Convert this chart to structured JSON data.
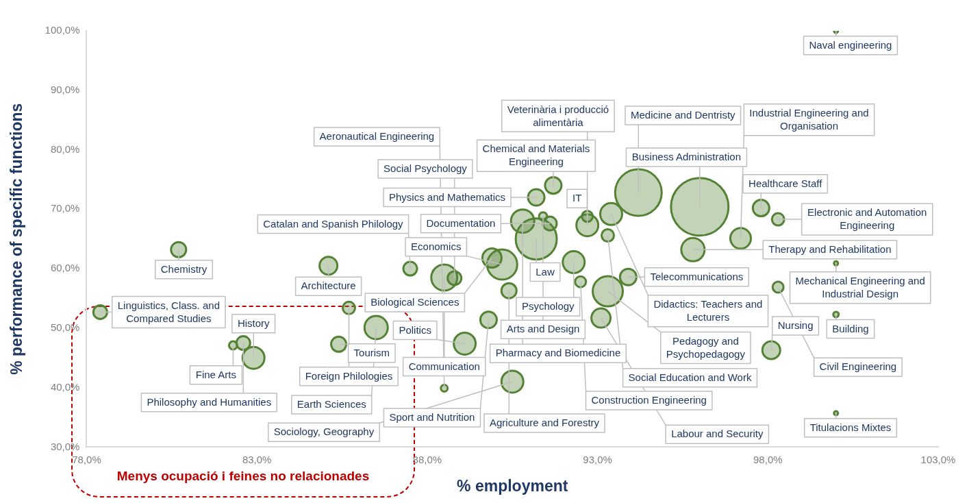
{
  "chart_data": {
    "type": "bubble",
    "xlabel": "% employment",
    "ylabel": "% performance of specific functions",
    "xlim": [
      78,
      103
    ],
    "ylim": [
      30,
      100
    ],
    "xticks": [
      {
        "value": 78,
        "label": "78,0%"
      },
      {
        "value": 83,
        "label": "83,0%"
      },
      {
        "value": 88,
        "label": "88,0%"
      },
      {
        "value": 93,
        "label": "93,0%"
      },
      {
        "value": 98,
        "label": "98,0%"
      },
      {
        "value": 103,
        "label": "103,0%"
      }
    ],
    "yticks": [
      {
        "value": 30,
        "label": "30,0%"
      },
      {
        "value": 40,
        "label": "40,0%"
      },
      {
        "value": 50,
        "label": "50,0%"
      },
      {
        "value": 60,
        "label": "60,0%"
      },
      {
        "value": 70,
        "label": "70,0%"
      },
      {
        "value": 80,
        "label": "80,0%"
      },
      {
        "value": 90,
        "label": "90,0%"
      },
      {
        "value": 100,
        "label": "100,0%"
      }
    ],
    "grid": false,
    "legend": false,
    "series": [
      {
        "color": "#548235",
        "x": [
          100.0,
          91.7,
          92.7,
          91.2,
          96.0,
          93.4,
          92.7,
          91.4,
          91.6,
          90.8,
          94.2,
          93.3,
          97.8,
          98.3,
          89.9,
          87.5,
          90.2,
          97.2,
          91.2,
          80.7,
          95.8,
          85.1,
          78.4,
          88.8,
          88.5,
          92.3,
          100.0,
          85.7,
          93.9,
          100.0,
          92.5,
          90.4,
          93.3,
          98.3,
          93.1,
          89.8,
          86.5,
          85.4,
          82.3,
          82.6,
          89.1,
          98.1,
          82.9,
          90.5,
          88.5,
          100.0
        ],
        "values": [
          100.0,
          74.0,
          67.3,
          72.0,
          70.4,
          69.2,
          68.8,
          68.8,
          67.6,
          68.0,
          72.8,
          65.6,
          70.2,
          68.3,
          61.8,
          60.0,
          60.7,
          65.1,
          65.0,
          63.2,
          63.2,
          60.5,
          52.7,
          58.4,
          58.5,
          61.1,
          60.9,
          53.4,
          58.6,
          52.3,
          57.8,
          56.3,
          56.2,
          56.9,
          51.7,
          51.4,
          50.1,
          47.3,
          47.1,
          47.5,
          47.4,
          46.3,
          45.0,
          41.0,
          39.9,
          35.7
        ],
        "sizes": [
          0.005,
          0.082,
          0.145,
          0.082,
          1,
          0.145,
          0.036,
          0.02,
          0.057,
          0.164,
          0.655,
          0.046,
          0.082,
          0.046,
          0.111,
          0.057,
          0.274,
          0.128,
          0.51,
          0.069,
          0.164,
          0.096,
          0.057,
          0.057,
          0.205,
          0.145,
          0.005,
          0.046,
          0.082,
          0.009,
          0.036,
          0.069,
          0.274,
          0.036,
          0.111,
          0.082,
          0.164,
          0.069,
          0.02,
          0.057,
          0.145,
          0.096,
          0.145,
          0.145,
          0.014,
          0.005
        ]
      }
    ],
    "annotations": [
      {
        "text": "Naval engineering",
        "x": 100.0,
        "y": 100.0
      },
      {
        "text": "Chemical and Materials Engineering",
        "x": 91.7,
        "y": 74.0
      },
      {
        "text": "Veterinària i producció alimentària",
        "x": 92.7,
        "y": 67.3
      },
      {
        "text": "Physics and Mathematics",
        "x": 91.2,
        "y": 72.0
      },
      {
        "text": "Business Administration",
        "x": 96.0,
        "y": 70.4
      },
      {
        "text": "Didactics: Teachers and Lecturers",
        "x": 93.4,
        "y": 69.2
      },
      {
        "text": "IT",
        "x": 92.7,
        "y": 68.8
      },
      {
        "text": "Arts and Design",
        "x": 91.4,
        "y": 68.8
      },
      {
        "text": "Documentation",
        "x": 91.6,
        "y": 67.6
      },
      {
        "text": "Pharmacy and Biomedicine",
        "x": 90.8,
        "y": 68.0
      },
      {
        "text": "Medicine and Dentristy",
        "x": 94.2,
        "y": 72.8
      },
      {
        "text": "Social Education and Work",
        "x": 93.3,
        "y": 65.6
      },
      {
        "text": "Healthcare Staff",
        "x": 97.8,
        "y": 70.2
      },
      {
        "text": "Electronic and Automation Engineering",
        "x": 98.3,
        "y": 68.3
      },
      {
        "text": "Biological Sciences",
        "x": 89.9,
        "y": 61.8
      },
      {
        "text": "Catalan and Spanish Philology",
        "x": 87.5,
        "y": 60.0
      },
      {
        "text": "Economics",
        "x": 90.2,
        "y": 60.7
      },
      {
        "text": "Industrial Engineering and Organisation",
        "x": 97.2,
        "y": 65.1
      },
      {
        "text": "Law",
        "x": 91.2,
        "y": 65.0
      },
      {
        "text": "Chemistry",
        "x": 80.7,
        "y": 63.2
      },
      {
        "text": "Therapy and Rehabilitation",
        "x": 95.8,
        "y": 63.2
      },
      {
        "text": "Architecture",
        "x": 85.1,
        "y": 60.5
      },
      {
        "text": "Linguistics, Class. and Compared Studies",
        "x": 78.4,
        "y": 52.7
      },
      {
        "text": "Social Psychology",
        "x": 88.8,
        "y": 58.4
      },
      {
        "text": "Communication",
        "x": 88.5,
        "y": 58.5
      },
      {
        "text": "Psychology",
        "x": 92.3,
        "y": 61.1
      },
      {
        "text": "Mechanical Engineering and Industrial Design",
        "x": 100.0,
        "y": 60.9
      },
      {
        "text": "Foreign Philologies",
        "x": 85.7,
        "y": 53.4
      },
      {
        "text": "Telecommunications",
        "x": 93.9,
        "y": 58.6
      },
      {
        "text": "Building",
        "x": 100.0,
        "y": 52.3
      },
      {
        "text": "Construction Engineering",
        "x": 92.5,
        "y": 57.8
      },
      {
        "text": "Agriculture and Forestry",
        "x": 90.4,
        "y": 56.3
      },
      {
        "text": "Pedagogy and Psychopedagogy",
        "x": 93.3,
        "y": 56.2
      },
      {
        "text": "Civil Engineering",
        "x": 98.3,
        "y": 56.9
      },
      {
        "text": "Labour and Security",
        "x": 93.1,
        "y": 51.7
      },
      {
        "text": "Sport and Nutrition",
        "x": 89.8,
        "y": 51.4
      },
      {
        "text": "Earth Sciences",
        "x": 86.5,
        "y": 50.1
      },
      {
        "text": "Tourism",
        "x": 85.4,
        "y": 47.3
      },
      {
        "text": "Fine Arts",
        "x": 82.3,
        "y": 47.1
      },
      {
        "text": "Philosophy and Humanities",
        "x": 82.6,
        "y": 47.5
      },
      {
        "text": "Politics",
        "x": 89.1,
        "y": 47.4
      },
      {
        "text": "Nursing",
        "x": 98.1,
        "y": 46.3
      },
      {
        "text": "History",
        "x": 82.9,
        "y": 45.0
      },
      {
        "text": "Sociology, Geography",
        "x": 90.5,
        "y": 41.0
      },
      {
        "text": "Aeronautical Engineering",
        "x": 88.5,
        "y": 39.9
      },
      {
        "text": "Titulacions Mixtes",
        "x": 100.0,
        "y": 35.7
      },
      "Menys ocupació i feines no relacionades"
    ]
  }
}
